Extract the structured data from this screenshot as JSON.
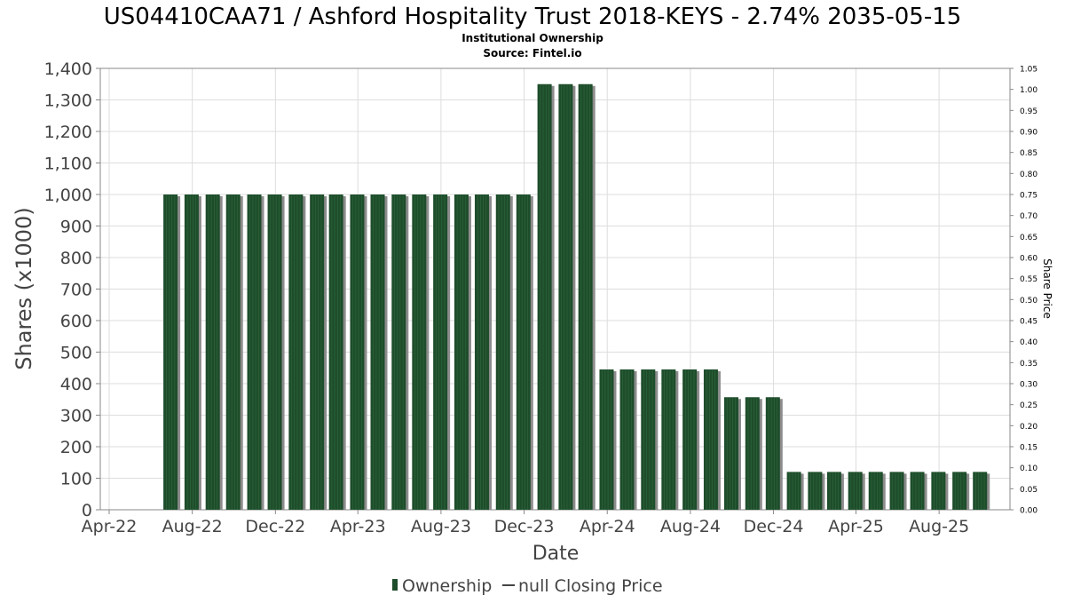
{
  "chart_data": {
    "type": "bar",
    "title": "US04410CAA71 / Ashford Hospitality Trust 2018-KEYS - 2.74% 2035-05-15",
    "subtitle": "Institutional Ownership",
    "source": "Source: Fintel.io",
    "xlabel": "Date",
    "ylabel": "Shares (x1000)",
    "y2label": "Share Price",
    "ylim": [
      0,
      1400
    ],
    "y2lim": [
      0,
      1.05
    ],
    "x_range": [
      "2022-04-01",
      "2025-10-31"
    ],
    "y_ticks": [
      "0",
      "100",
      "200",
      "300",
      "400",
      "500",
      "600",
      "700",
      "800",
      "900",
      "1,000",
      "1,100",
      "1,200",
      "1,300",
      "1,400"
    ],
    "y2_ticks": [
      "0.00",
      "0.05",
      "0.10",
      "0.15",
      "0.20",
      "0.25",
      "0.30",
      "0.35",
      "0.40",
      "0.45",
      "0.50",
      "0.55",
      "0.60",
      "0.65",
      "0.70",
      "0.75",
      "0.80",
      "0.85",
      "0.90",
      "0.95",
      "1.00",
      "1.05"
    ],
    "x_ticks": [
      {
        "label": "Apr-22",
        "date": "2022-04-01"
      },
      {
        "label": "Aug-22",
        "date": "2022-08-01"
      },
      {
        "label": "Dec-22",
        "date": "2022-12-01"
      },
      {
        "label": "Apr-23",
        "date": "2023-04-01"
      },
      {
        "label": "Aug-23",
        "date": "2023-08-01"
      },
      {
        "label": "Dec-23",
        "date": "2023-12-01"
      },
      {
        "label": "Apr-24",
        "date": "2024-04-01"
      },
      {
        "label": "Aug-24",
        "date": "2024-08-01"
      },
      {
        "label": "Dec-24",
        "date": "2024-12-01"
      },
      {
        "label": "Apr-25",
        "date": "2025-04-01"
      },
      {
        "label": "Aug-25",
        "date": "2025-08-01"
      }
    ],
    "grid": true,
    "legend_position": "bottom",
    "colors": {
      "bar": "#1e4d2b",
      "bar_shadow": "#8c8c8c",
      "grid": "#dddddd",
      "axis": "#888888"
    },
    "series": [
      {
        "name": "Ownership",
        "x": [
          "2022-06-30",
          "2022-07-31",
          "2022-08-31",
          "2022-09-30",
          "2022-10-31",
          "2022-11-30",
          "2022-12-31",
          "2023-01-31",
          "2023-02-28",
          "2023-03-31",
          "2023-04-30",
          "2023-05-31",
          "2023-06-30",
          "2023-07-31",
          "2023-08-31",
          "2023-09-30",
          "2023-10-31",
          "2023-11-30",
          "2023-12-31",
          "2024-01-31",
          "2024-02-29",
          "2024-03-31",
          "2024-04-30",
          "2024-05-31",
          "2024-06-30",
          "2024-07-31",
          "2024-08-31",
          "2024-09-30",
          "2024-10-31",
          "2024-11-30",
          "2024-12-31",
          "2025-01-31",
          "2025-02-28",
          "2025-03-31",
          "2025-04-30",
          "2025-05-31",
          "2025-06-30",
          "2025-07-31",
          "2025-08-31",
          "2025-09-30"
        ],
        "values": [
          1000,
          1000,
          1000,
          1000,
          1000,
          1000,
          1000,
          1000,
          1000,
          1000,
          1000,
          1000,
          1000,
          1000,
          1000,
          1000,
          1000,
          1000,
          1350,
          1350,
          1350,
          445,
          445,
          445,
          445,
          445,
          445,
          357,
          357,
          357,
          120,
          120,
          120,
          120,
          120,
          120,
          120,
          120,
          120,
          120
        ]
      },
      {
        "name": "null Closing Price",
        "x": [],
        "values": []
      }
    ]
  }
}
